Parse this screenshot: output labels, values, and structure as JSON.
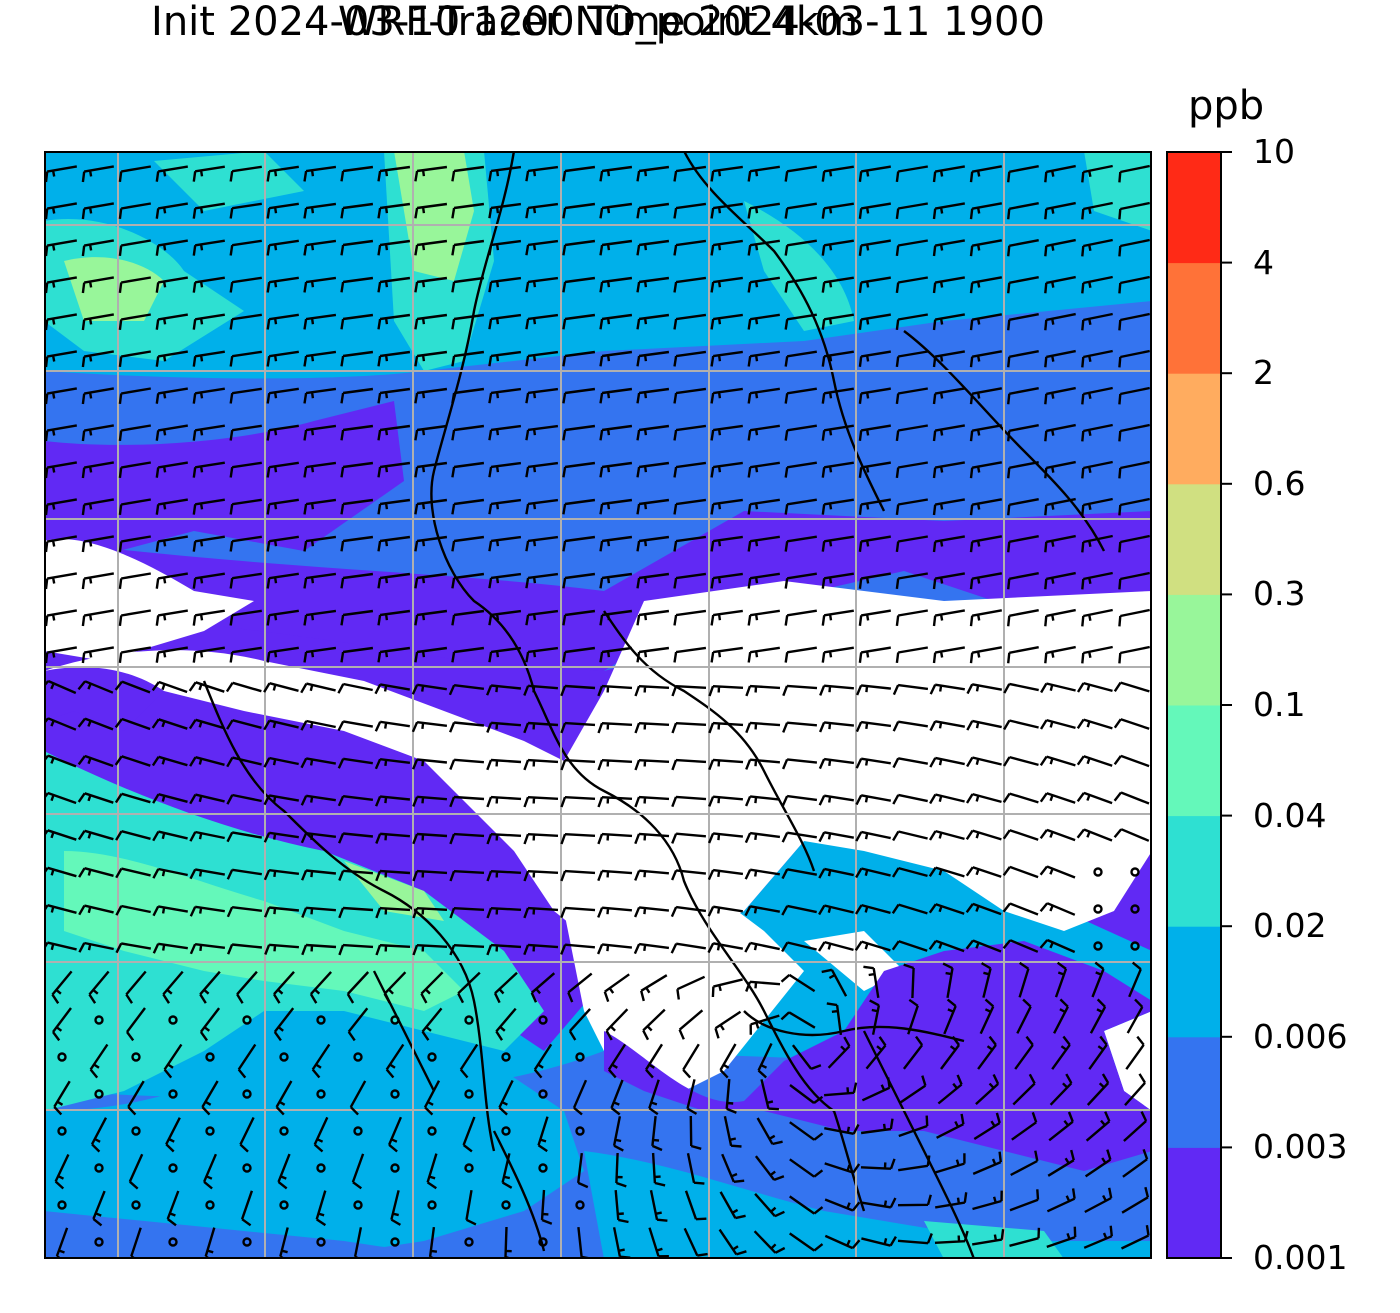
{
  "title_line1": "WRF-Tracer NO_point 4km",
  "title_line2": "Init 2024-03-10 1200 Time 2024-03-11 1900",
  "units": "ppb",
  "colorbar": {
    "levels": [
      "0.001",
      "0.003",
      "0.006",
      "0.02",
      "0.04",
      "0.1",
      "0.3",
      "0.6",
      "2",
      "4",
      "10"
    ],
    "colors": [
      "#6129f4",
      "#3474f0",
      "#00b0ea",
      "#2ee0d2",
      "#64f8ba",
      "#98f69a",
      "#d0e081",
      "#ffac5f",
      "#ff7238",
      "#ff2a16"
    ]
  },
  "colors": {
    "background_low": "#ffffff",
    "coastline": "#000000",
    "gridline": "#b0b0b0",
    "barb": "#000000"
  },
  "map": {
    "grid": true,
    "overlay": "wind barbs",
    "field": "NO_point tracer concentration"
  }
}
